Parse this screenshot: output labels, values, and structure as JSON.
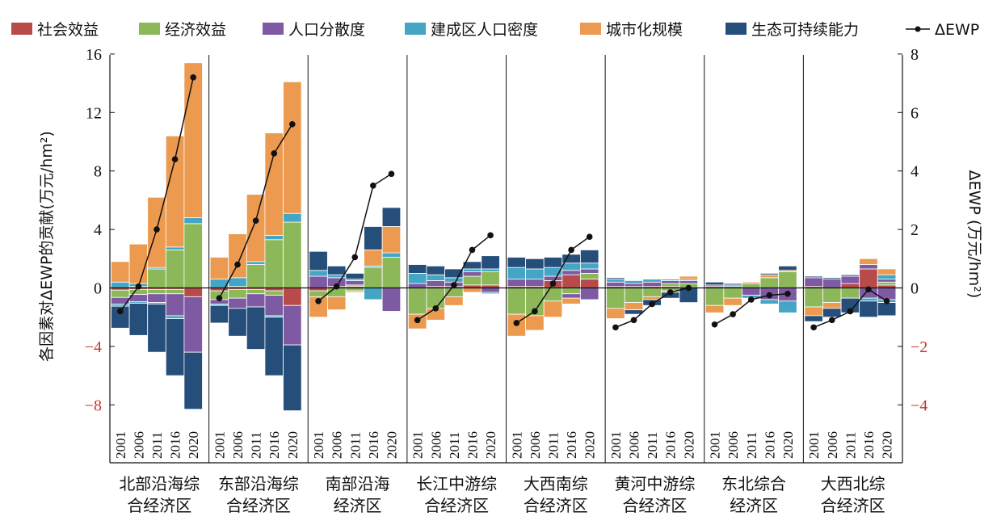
{
  "chart_data": {
    "type": "bar",
    "subtype": "stacked-bar with line overlay on secondary axis",
    "ylabel": "各因素对ΔEWP的贡献(万元/hm²)",
    "y2label": "ΔEWP (万元/hm²)",
    "ylim": [
      -10,
      16
    ],
    "y2lim": [
      -5,
      8
    ],
    "yticks": [
      -8,
      -4,
      0,
      4,
      8,
      12,
      16
    ],
    "yticks_labels": [
      "−8",
      "−4",
      "0",
      "4",
      "8",
      "12",
      "16"
    ],
    "y2ticks": [
      -4,
      -2,
      0,
      2,
      4,
      6,
      8
    ],
    "y2ticks_labels": [
      "−4",
      "−2",
      "0",
      "2",
      "4",
      "6",
      "8"
    ],
    "negative_tick_color": "#c0392b",
    "years": [
      "2001",
      "2006",
      "2011",
      "2016",
      "2020"
    ],
    "legend": {
      "position": "top",
      "items": [
        {
          "label": "社会效益",
          "color": "#b84a4a",
          "kind": "bar"
        },
        {
          "label": "经济效益",
          "color": "#8db85a",
          "kind": "bar"
        },
        {
          "label": "人口分散度",
          "color": "#7e5aa3",
          "kind": "bar"
        },
        {
          "label": "建成区人口密度",
          "color": "#45a5c4",
          "kind": "bar"
        },
        {
          "label": "城市化规模",
          "color": "#ec9a4f",
          "kind": "bar"
        },
        {
          "label": "生态可持续能力",
          "color": "#254e7a",
          "kind": "bar"
        },
        {
          "label": "ΔEWP",
          "color": "#111111",
          "kind": "line"
        }
      ]
    },
    "regions": [
      {
        "name_line1": "北部沿海综",
        "name_line2": "合经济区",
        "bars": [
          {
            "pos": [
              0,
              0,
              0,
              0.4,
              1.4,
              0
            ],
            "neg": [
              -0.15,
              -0.5,
              -0.45,
              -0.15,
              0,
              -1.5
            ]
          },
          {
            "pos": [
              0,
              0.1,
              0,
              0.2,
              2.7,
              0
            ],
            "neg": [
              -0.1,
              -0.35,
              -0.5,
              -0.1,
              0,
              -2.2
            ]
          },
          {
            "pos": [
              0,
              1.3,
              0,
              0.1,
              4.8,
              0
            ],
            "neg": [
              -0.1,
              -0.3,
              -0.6,
              -0.1,
              0,
              -3.3
            ]
          },
          {
            "pos": [
              0,
              2.6,
              0,
              0.2,
              7.6,
              0
            ],
            "neg": [
              -0.1,
              -0.3,
              -1.5,
              -0.2,
              0,
              -3.9
            ]
          },
          {
            "pos": [
              0,
              4.4,
              0,
              0.4,
              10.6,
              0
            ],
            "neg": [
              -0.6,
              0,
              -3.8,
              0,
              0,
              -3.9
            ]
          }
        ],
        "ewp": [
          -0.8,
          0.05,
          2.0,
          4.4,
          7.2
        ]
      },
      {
        "name_line1": "东部沿海综",
        "name_line2": "合经济区",
        "bars": [
          {
            "pos": [
              0,
              0,
              0,
              0.6,
              1.5,
              0
            ],
            "neg": [
              -0.2,
              -0.6,
              -0.3,
              -0.1,
              0,
              -1.2
            ]
          },
          {
            "pos": [
              0,
              0.1,
              0,
              0.6,
              3.0,
              0
            ],
            "neg": [
              -0.1,
              -0.6,
              -0.7,
              0,
              0,
              -1.9
            ]
          },
          {
            "pos": [
              0,
              1.6,
              0,
              0.2,
              4.6,
              0
            ],
            "neg": [
              -0.1,
              -0.3,
              -0.9,
              0,
              0,
              -2.9
            ]
          },
          {
            "pos": [
              0,
              3.3,
              0,
              0.3,
              7.0,
              0
            ],
            "neg": [
              -0.2,
              -0.3,
              -1.4,
              -0.1,
              0,
              -4.0
            ]
          },
          {
            "pos": [
              0,
              4.5,
              0,
              0.6,
              9.0,
              0
            ],
            "neg": [
              -1.2,
              0,
              -2.7,
              0,
              0,
              -4.5
            ]
          }
        ],
        "ewp": [
          -0.35,
          0.8,
          2.3,
          4.6,
          5.6
        ]
      },
      {
        "name_line1": "南部沿海",
        "name_line2": "经济区",
        "bars": [
          {
            "pos": [
              0,
              0,
              0.8,
              0.4,
              0,
              1.3
            ],
            "neg": [
              -0.2,
              -0.4,
              0,
              0,
              -1.4,
              0
            ]
          },
          {
            "pos": [
              0.1,
              0,
              0.6,
              0.2,
              0,
              0.6
            ],
            "neg": [
              0,
              -0.6,
              0,
              0,
              -0.9,
              0
            ]
          },
          {
            "pos": [
              0.1,
              0.1,
              0.3,
              0.1,
              0,
              0.4
            ],
            "neg": [
              0,
              -0.2,
              0,
              0,
              -0.1,
              0
            ]
          },
          {
            "pos": [
              0,
              1.4,
              0,
              0.1,
              1.1,
              1.6
            ],
            "neg": [
              0,
              0,
              0,
              -0.8,
              0,
              0
            ]
          },
          {
            "pos": [
              0,
              2.1,
              0,
              0.3,
              1.8,
              1.3
            ],
            "neg": [
              0,
              0,
              -1.6,
              0,
              0,
              0
            ]
          }
        ],
        "ewp": [
          -0.45,
          0.05,
          1.05,
          3.5,
          3.9
        ]
      },
      {
        "name_line1": "长江中游综",
        "name_line2": "合经济区",
        "bars": [
          {
            "pos": [
              0,
              0,
              0.3,
              0.7,
              0,
              0.6
            ],
            "neg": [
              0,
              -1.8,
              0,
              0,
              -1.0,
              0
            ]
          },
          {
            "pos": [
              0.1,
              0,
              0.4,
              0.4,
              0,
              0.6
            ],
            "neg": [
              0,
              -1.4,
              0,
              0,
              -0.8,
              0
            ]
          },
          {
            "pos": [
              0.1,
              0,
              0.3,
              0.3,
              0,
              0.6
            ],
            "neg": [
              0,
              -0.6,
              0,
              0,
              -0.6,
              0
            ]
          },
          {
            "pos": [
              0.2,
              0.6,
              0.3,
              0.2,
              0,
              0.5
            ],
            "neg": [
              0,
              0,
              0,
              0,
              -0.3,
              0
            ]
          },
          {
            "pos": [
              0.2,
              0.9,
              0,
              0.2,
              0,
              0.9
            ],
            "neg": [
              0,
              0,
              -0.3,
              -0.1,
              0,
              0
            ]
          }
        ],
        "ewp": [
          -1.1,
          -0.7,
          0.1,
          1.3,
          1.8
        ]
      },
      {
        "name_line1": "大西南综",
        "name_line2": "合经济区",
        "bars": [
          {
            "pos": [
              0.1,
              0,
              0.5,
              0.8,
              0,
              0.7
            ],
            "neg": [
              0,
              -1.8,
              0,
              0,
              -1.5,
              0
            ]
          },
          {
            "pos": [
              0.1,
              0,
              0.5,
              0.7,
              0,
              0.7
            ],
            "neg": [
              0,
              -1.9,
              0,
              0,
              -1.0,
              0
            ]
          },
          {
            "pos": [
              0.5,
              0,
              0.3,
              0.6,
              0,
              0.7
            ],
            "neg": [
              0,
              -0.9,
              0,
              0,
              -1.1,
              0
            ]
          },
          {
            "pos": [
              0.9,
              0,
              0.3,
              0.5,
              0,
              0.6
            ],
            "neg": [
              0,
              -0.4,
              -0.3,
              0,
              -0.4,
              0
            ]
          },
          {
            "pos": [
              0.6,
              0.4,
              0.3,
              0.4,
              0,
              0.9
            ],
            "neg": [
              0,
              0,
              -0.8,
              0,
              0,
              0
            ]
          }
        ],
        "ewp": [
          -1.2,
          -0.8,
          0.15,
          1.3,
          1.75
        ]
      },
      {
        "name_line1": "黄河中游综",
        "name_line2": "合经济区",
        "bars": [
          {
            "pos": [
              0.1,
              0,
              0.3,
              0.2,
              0,
              0.1
            ],
            "neg": [
              0,
              -1.4,
              0,
              0,
              -0.7,
              0
            ]
          },
          {
            "pos": [
              0.1,
              0,
              0.2,
              0.2,
              0,
              0
            ],
            "neg": [
              0,
              -1.0,
              0,
              0,
              -0.5,
              -0.3
            ]
          },
          {
            "pos": [
              0.1,
              0,
              0.3,
              0.2,
              0,
              0
            ],
            "neg": [
              0,
              -0.6,
              0,
              0,
              -0.2,
              -0.4
            ]
          },
          {
            "pos": [
              0.1,
              0.2,
              0.2,
              0.1,
              0,
              0
            ],
            "neg": [
              0,
              -0.2,
              0,
              0,
              -0.1,
              -0.4
            ]
          },
          {
            "pos": [
              0,
              0.3,
              0.2,
              0.1,
              0.2,
              0
            ],
            "neg": [
              0,
              0,
              0,
              0,
              0,
              -1.0
            ]
          }
        ],
        "ewp": [
          -1.35,
          -1.1,
          -0.55,
          -0.15,
          0.0
        ]
      },
      {
        "name_line1": "东北综合",
        "name_line2": "经济区",
        "bars": [
          {
            "pos": [
              0.1,
              0,
              0.1,
              0,
              0,
              0.2
            ],
            "neg": [
              0,
              -1.2,
              0,
              0,
              -0.5,
              0
            ]
          },
          {
            "pos": [
              0,
              0,
              0.1,
              0.1,
              0,
              0.1
            ],
            "neg": [
              0,
              -0.7,
              0,
              0,
              -0.5,
              0
            ]
          },
          {
            "pos": [
              0,
              0.3,
              0,
              0,
              0.1,
              0
            ],
            "neg": [
              0,
              0,
              -0.5,
              -0.2,
              0,
              0
            ]
          },
          {
            "pos": [
              0,
              0.7,
              0,
              0,
              0.2,
              0.1
            ],
            "neg": [
              0,
              0,
              -0.8,
              -0.3,
              0,
              0
            ]
          },
          {
            "pos": [
              0,
              1.1,
              0,
              0,
              0.1,
              0.3
            ],
            "neg": [
              0,
              0,
              -0.9,
              -0.8,
              0,
              0
            ]
          }
        ],
        "ewp": [
          -1.25,
          -0.9,
          -0.4,
          -0.25,
          -0.2
        ]
      },
      {
        "name_line1": "大西北综",
        "name_line2": "合经济区",
        "bars": [
          {
            "pos": [
              0.1,
              0,
              0.6,
              0,
              0,
              0.1
            ],
            "neg": [
              0,
              -1.3,
              0,
              0,
              -0.6,
              -0.4
            ]
          },
          {
            "pos": [
              0,
              0,
              0.6,
              0,
              0,
              0.1
            ],
            "neg": [
              0,
              -1.0,
              0,
              0,
              -0.4,
              -0.6
            ]
          },
          {
            "pos": [
              0.3,
              0,
              0.5,
              0,
              0,
              0.1
            ],
            "neg": [
              0,
              -0.7,
              0,
              0,
              0,
              -1.0
            ]
          },
          {
            "pos": [
              1.3,
              0,
              0.3,
              0,
              0.4,
              0
            ],
            "neg": [
              0,
              0,
              -0.7,
              -0.2,
              0,
              -1.1
            ]
          },
          {
            "pos": [
              0.2,
              0.2,
              0.2,
              0.3,
              0.4,
              0
            ],
            "neg": [
              0,
              0,
              -0.8,
              -0.2,
              0,
              -0.9
            ]
          }
        ],
        "ewp": [
          -1.35,
          -1.1,
          -0.8,
          -0.05,
          -0.45
        ]
      }
    ]
  }
}
